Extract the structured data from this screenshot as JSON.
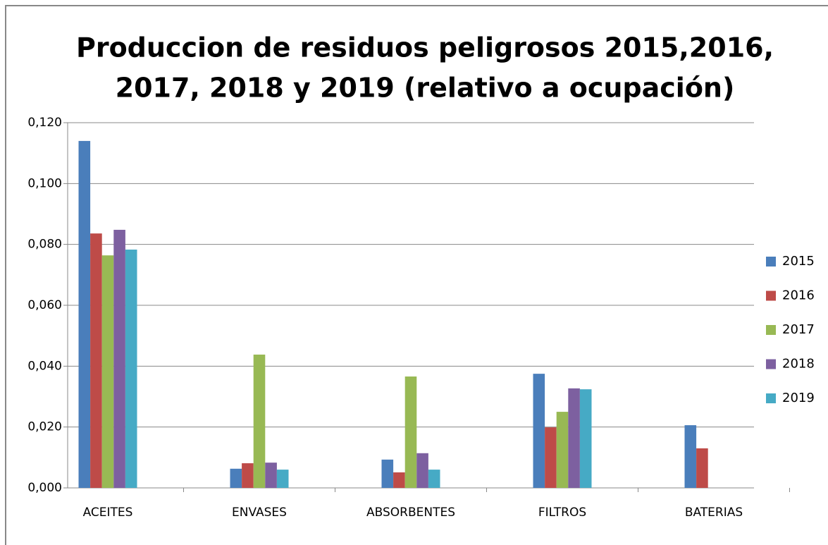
{
  "chart_data": {
    "type": "bar",
    "title": [
      "Produccion de residuos peligrosos 2015,2016,",
      "2017, 2018 y 2019 (relativo a ocupación)"
    ],
    "categories": [
      "ACEITES",
      "ENVASES",
      "ABSORBENTES",
      "FILTROS",
      "BATERIAS"
    ],
    "series": [
      {
        "name": "2015",
        "color": "#4a7ebb",
        "values": [
          0.114,
          0.0063,
          0.0093,
          0.0375,
          0.0206
        ]
      },
      {
        "name": "2016",
        "color": "#be4b48",
        "values": [
          0.0836,
          0.0081,
          0.0051,
          0.0199,
          0.013
        ]
      },
      {
        "name": "2017",
        "color": "#98b954",
        "values": [
          0.0764,
          0.0438,
          0.0366,
          0.025,
          null
        ]
      },
      {
        "name": "2018",
        "color": "#7d60a0",
        "values": [
          0.0848,
          0.0083,
          0.0114,
          0.0327,
          null
        ]
      },
      {
        "name": "2019",
        "color": "#46aac5",
        "values": [
          0.0783,
          0.006,
          0.006,
          0.0324,
          null
        ]
      }
    ],
    "ylim": [
      0,
      0.12
    ],
    "yticks": [
      {
        "value": 0,
        "label": "0,000"
      },
      {
        "value": 0.02,
        "label": "0,020"
      },
      {
        "value": 0.04,
        "label": "0,040"
      },
      {
        "value": 0.06,
        "label": "0,060"
      },
      {
        "value": 0.08,
        "label": "0,080"
      },
      {
        "value": 0.1,
        "label": "0,100"
      },
      {
        "value": 0.12,
        "label": "0,120"
      }
    ],
    "grid": true,
    "legend": "right"
  }
}
